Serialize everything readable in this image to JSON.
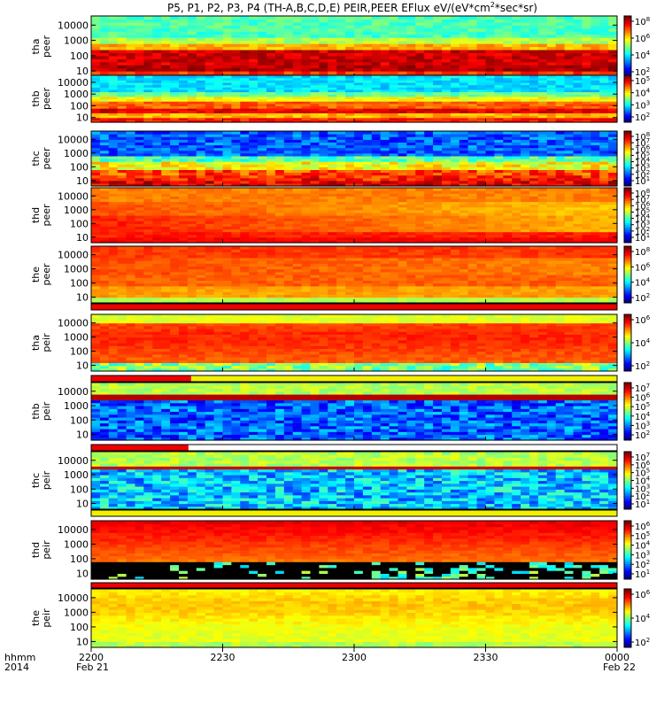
{
  "title": "P5, P1, P2, P3, P4 (TH-A,B,C,D,E) PEIR,PEER EFlux eV/(eV*cm",
  "title_sup": "2",
  "title_tail": "*sec*sr)",
  "chart_data": {
    "type": "heatmap",
    "x_ticks": [
      "2200",
      "2230",
      "2300",
      "2330",
      "0000"
    ],
    "x_row_label": "hhmm",
    "year_label": "2014",
    "date_labels": [
      "Feb 21",
      "Feb 22"
    ],
    "y_scale": "log",
    "y_ticks": [
      "10",
      "100",
      "1000",
      "10000"
    ],
    "panels": [
      {
        "label1": "tha",
        "label2": "peer",
        "cb_labels": [
          "8",
          "6",
          "4",
          "2"
        ],
        "profile": "peer_tha",
        "status_bar": null
      },
      {
        "label1": "thb",
        "label2": "peer",
        "cb_labels": [
          "5",
          "4",
          "3",
          "2"
        ],
        "profile": "peer_thb",
        "status_bar": null
      },
      {
        "label1": "thc",
        "label2": "peer",
        "cb_labels": [
          "8",
          "7",
          "6",
          "5",
          "4",
          "3",
          "2",
          "1"
        ],
        "profile": "peer_thc",
        "status_bar": null
      },
      {
        "label1": "thd",
        "label2": "peer",
        "cb_labels": [
          "8",
          "7",
          "6",
          "5",
          "4",
          "3",
          "2",
          "1"
        ],
        "profile": "peer_thd",
        "status_bar": null
      },
      {
        "label1": "the",
        "label2": "peer",
        "cb_labels": [
          "8",
          "6",
          "4",
          "2"
        ],
        "profile": "peer_the",
        "status_bar": {
          "segments": [
            [
              0,
              1,
              "#ee0000"
            ]
          ]
        }
      },
      {
        "label1": "tha",
        "label2": "peir",
        "cb_labels": [
          "6",
          "4",
          "2"
        ],
        "profile": "peir_tha",
        "status_bar": {
          "segments": [
            [
              0,
              0.19,
              "#ee0000"
            ],
            [
              0.19,
              1,
              "#f0f000"
            ]
          ]
        }
      },
      {
        "label1": "thb",
        "label2": "peir",
        "cb_labels": [
          "7",
          "6",
          "5",
          "4",
          "3",
          "2"
        ],
        "profile": "peir_thb",
        "status_bar": {
          "segments": [
            [
              0,
              0.185,
              "#ee0000"
            ],
            [
              0.185,
              1,
              "#ffffff"
            ]
          ]
        }
      },
      {
        "label1": "thc",
        "label2": "peir",
        "cb_labels": [
          "7",
          "6",
          "5",
          "4",
          "3",
          "2",
          "1"
        ],
        "profile": "peir_thc",
        "status_bar": {
          "segments": [
            [
              0,
              1,
              "#f0f000"
            ]
          ]
        }
      },
      {
        "label1": "thd",
        "label2": "peir",
        "cb_labels": [
          "6",
          "5",
          "4",
          "3",
          "2",
          "1"
        ],
        "profile": "peir_thd",
        "status_bar": {
          "segments": [
            [
              0,
              1,
              "#ee0000"
            ]
          ]
        }
      },
      {
        "label1": "the",
        "label2": "peir",
        "cb_labels": [
          "6",
          "4",
          "2"
        ],
        "profile": "peir_the",
        "status_bar": null
      }
    ]
  }
}
